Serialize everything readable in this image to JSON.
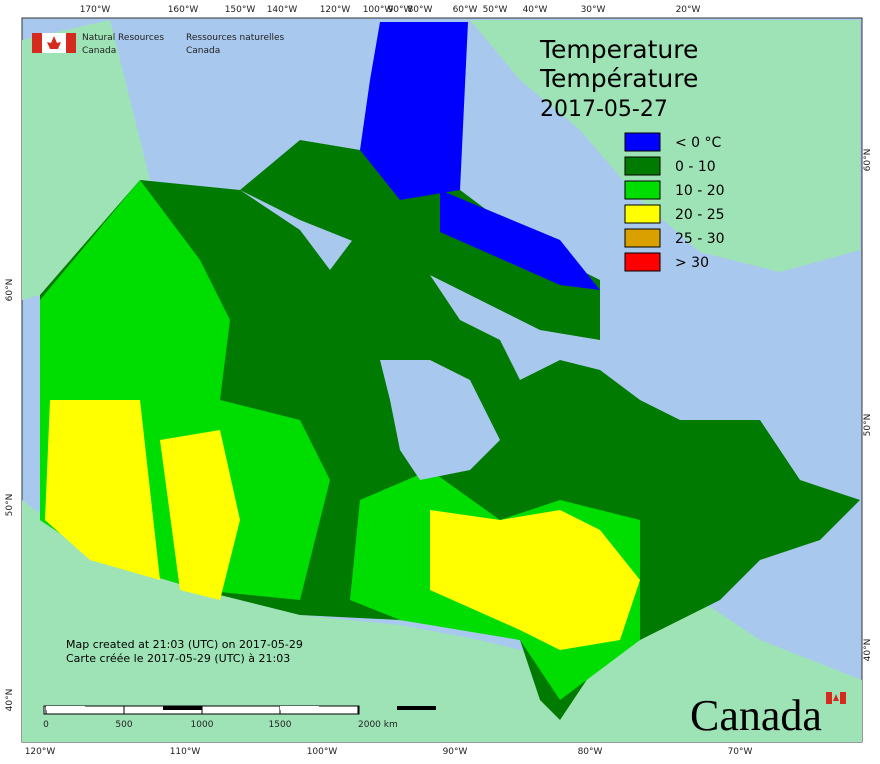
{
  "header": {
    "org_en": [
      "Natural Resources",
      "Canada"
    ],
    "org_fr": [
      "Ressources naturelles",
      "Canada"
    ]
  },
  "title": [
    "Temperature",
    "Température"
  ],
  "date": "2017-05-27",
  "legend": [
    {
      "label": "< 0 °C",
      "color": "#0000ff"
    },
    {
      "label": "0 - 10",
      "color": "#007a00"
    },
    {
      "label": "10 - 20",
      "color": "#00dd00"
    },
    {
      "label": "20 - 25",
      "color": "#ffff00"
    },
    {
      "label": "25 - 30",
      "color": "#d9a000"
    },
    {
      "label": "> 30",
      "color": "#ff0000"
    }
  ],
  "top_ticks": [
    "170°W",
    "160°W",
    "150°W",
    "140°W",
    "120°W",
    "100°W",
    "90°W",
    "80°W",
    "60°W",
    "50°W",
    "40°W",
    "30°W",
    "20°W"
  ],
  "bottom_ticks": [
    "120°W",
    "110°W",
    "100°W",
    "90°W",
    "80°W",
    "70°W"
  ],
  "left_ticks": [
    "60°N",
    "50°N",
    "40°N"
  ],
  "right_ticks": [
    "60°N",
    "50°N",
    "40°N"
  ],
  "notes": [
    "Map created at 21:03 (UTC) on 2017-05-29",
    "Carte créée le 2017-05-29 (UTC) à 21:03"
  ],
  "scale_labels": [
    "0",
    "500",
    "1000",
    "1500",
    "2000 km"
  ],
  "wordmark": "Canada"
}
